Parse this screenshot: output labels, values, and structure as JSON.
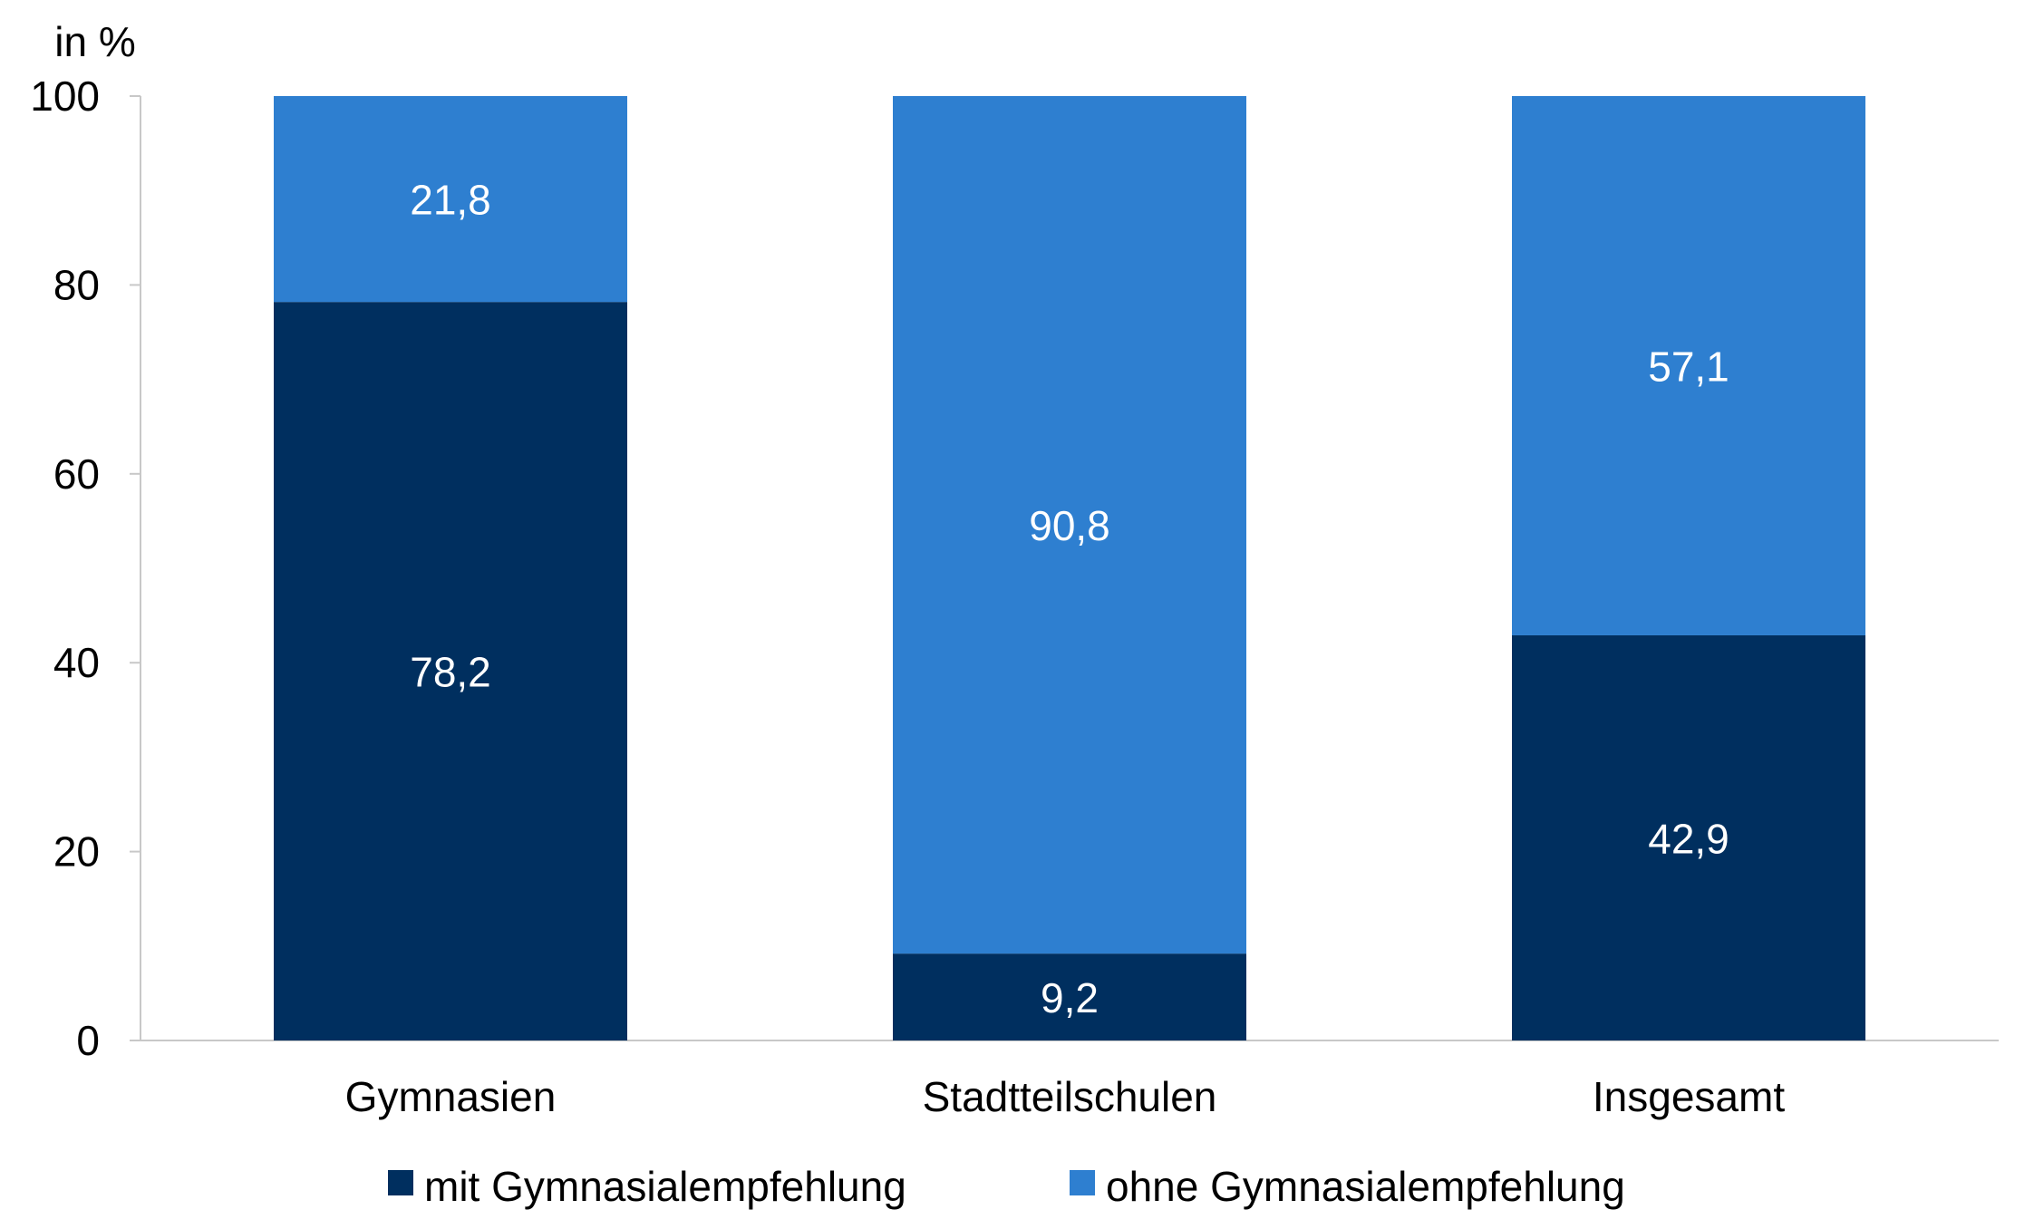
{
  "chart_data": {
    "type": "bar",
    "stacked": true,
    "title": "",
    "xlabel": "",
    "ylabel": "in %",
    "ylim": [
      0,
      100
    ],
    "yticks": [
      0,
      20,
      40,
      60,
      80,
      100
    ],
    "yticklabels": [
      "0",
      "20",
      "40",
      "60",
      "80",
      "100"
    ],
    "categories": [
      "Gymnasien",
      "Stadtteilschulen",
      "Insgesamt"
    ],
    "series": [
      {
        "name": "mit Gymnasialempfehlung",
        "color": "#002f5f",
        "values": [
          78.2,
          9.2,
          42.9
        ],
        "labels": [
          "78,2",
          "9,2",
          "42,9"
        ]
      },
      {
        "name": "ohne Gymnasialempfehlung",
        "color": "#2e7fd0",
        "values": [
          21.8,
          90.8,
          57.1
        ],
        "labels": [
          "21,8",
          "90,8",
          "57,1"
        ]
      }
    ],
    "grid": false,
    "legend_position": "bottom"
  }
}
